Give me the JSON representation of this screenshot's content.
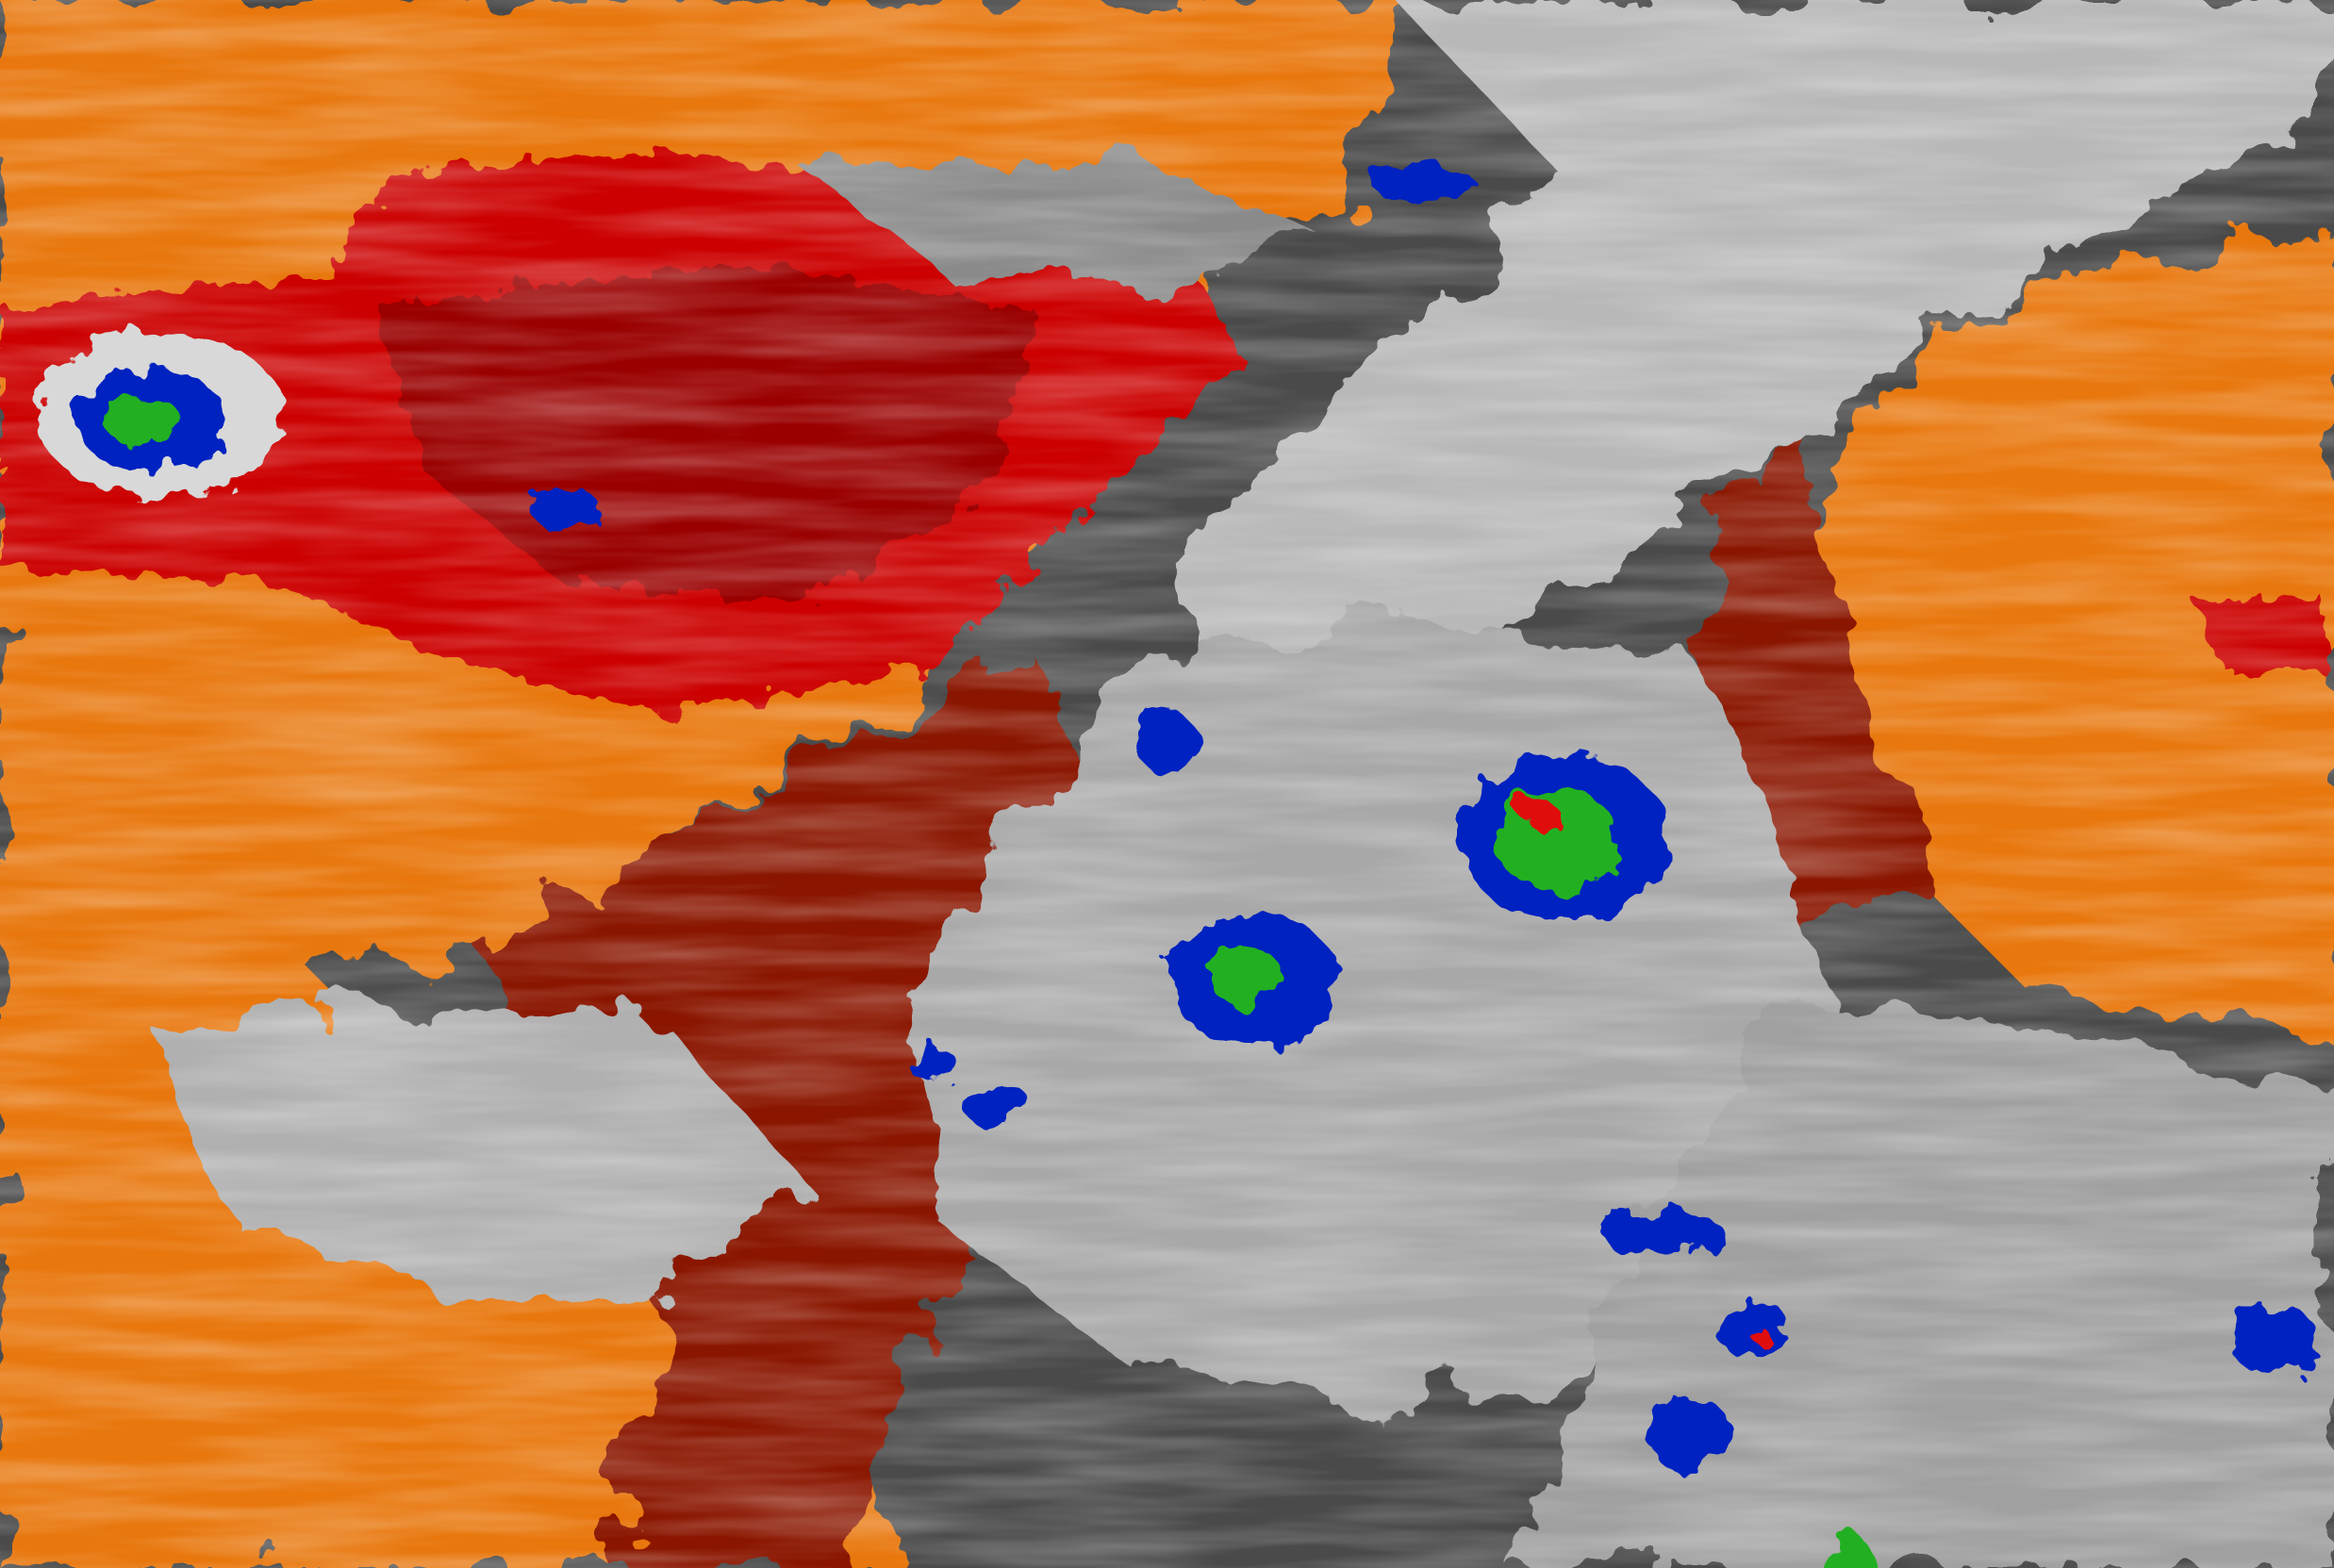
{
  "image": {
    "kind": "infrared satellite imagery",
    "palette": {
      "cold_background": "#4a4a4a",
      "cloud_light": "#d8d8d8",
      "cloud_mid": "#9a9a9a",
      "warm_orange": "#e8770a",
      "warm_dark": "#8a1500",
      "hot_red": "#cc0000",
      "cold_top_lightblue": "#8fb4e0",
      "cold_top_blue": "#0020c0",
      "cold_top_green": "#22b020",
      "coldest_red": "#e01010"
    }
  },
  "convective_cells": [
    {
      "colors": [
        "#0020c0",
        "#22b020"
      ]
    },
    {
      "colors": [
        "#0020c0",
        "#22b020",
        "#e01010"
      ]
    },
    {
      "colors": [
        "#0020c0",
        "#22b020"
      ]
    },
    {
      "colors": [
        "#0020c0"
      ]
    }
  ]
}
